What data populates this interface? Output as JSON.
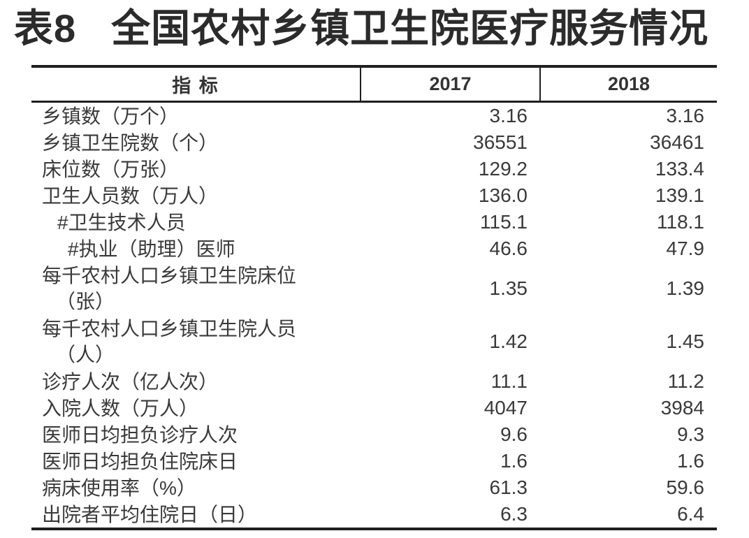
{
  "title": {
    "prefix": "表8",
    "main": "全国农村乡镇卫生院医疗服务情况"
  },
  "table": {
    "header": {
      "indicator": "指 标",
      "y2017": "2017",
      "y2018": "2018"
    },
    "rows": [
      {
        "label": "乡镇数（万个）",
        "v2017": "3.16",
        "v2018": "3.16"
      },
      {
        "label": "乡镇卫生院数（个）",
        "v2017": "36551",
        "v2018": "36461"
      },
      {
        "label": "床位数（万张）",
        "v2017": "129.2",
        "v2018": "133.4"
      },
      {
        "label": "卫生人员数（万人）",
        "v2017": "136.0",
        "v2018": "139.1"
      },
      {
        "label": "#卫生技术人员",
        "v2017": "115.1",
        "v2018": "118.1"
      },
      {
        "label": "#执业（助理）医师",
        "v2017": "46.6",
        "v2018": "47.9"
      },
      {
        "label": "每千农村人口乡镇卫生院床位",
        "label2": "（张）",
        "v2017": "1.35",
        "v2018": "1.39"
      },
      {
        "label": "每千农村人口乡镇卫生院人员",
        "label2": "（人）",
        "v2017": "1.42",
        "v2018": "1.45"
      },
      {
        "label": "诊疗人次（亿人次）",
        "v2017": "11.1",
        "v2018": "11.2"
      },
      {
        "label": "入院人数（万人）",
        "v2017": "4047",
        "v2018": "3984"
      },
      {
        "label": "医师日均担负诊疗人次",
        "v2017": "9.6",
        "v2018": "9.3"
      },
      {
        "label": "医师日均担负住院床日",
        "v2017": "1.6",
        "v2018": "1.6"
      },
      {
        "label": "病床使用率（%）",
        "v2017": "61.3",
        "v2018": "59.6"
      },
      {
        "label": "出院者平均住院日（日）",
        "v2017": "6.3",
        "v2018": "6.4"
      }
    ]
  },
  "colors": {
    "background": "#ffffff",
    "text": "#3a3a3a",
    "title_text": "#2b2b2b",
    "border": "#1f1f1f"
  }
}
